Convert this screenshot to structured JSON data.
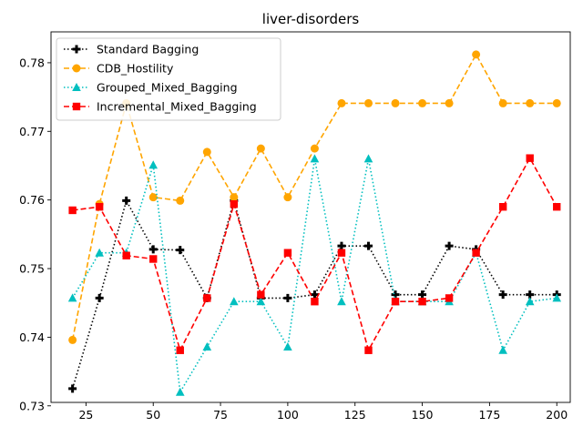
{
  "chart_data": {
    "type": "line",
    "title": "liver-disorders",
    "xlabel": "",
    "ylabel": "",
    "xlim": [
      12,
      205
    ],
    "ylim": [
      0.7305,
      0.7845
    ],
    "xticks": [
      25,
      50,
      75,
      100,
      125,
      150,
      175,
      200
    ],
    "yticks": [
      0.73,
      0.74,
      0.75,
      0.76,
      0.77,
      0.78
    ],
    "grid": false,
    "legend": "top-left",
    "x": [
      20,
      30,
      40,
      50,
      60,
      70,
      80,
      90,
      100,
      110,
      120,
      130,
      140,
      150,
      160,
      170,
      180,
      190,
      200
    ],
    "series": [
      {
        "name": "Standard Bagging",
        "color": "#000000",
        "line": "dotted",
        "marker": "plus",
        "values": [
          0.7325,
          0.7457,
          0.7599,
          0.7528,
          0.7527,
          0.7457,
          0.7599,
          0.7457,
          0.7457,
          0.7462,
          0.7533,
          0.7533,
          0.7462,
          0.7462,
          0.7533,
          0.7528,
          0.7462,
          0.7462,
          0.7462
        ]
      },
      {
        "name": "CDB_Hostility",
        "color": "#ffa500",
        "line": "dashed",
        "marker": "circle",
        "values": [
          0.7396,
          0.7594,
          0.7741,
          0.7604,
          0.7599,
          0.767,
          0.7604,
          0.7675,
          0.7604,
          0.7675,
          0.7741,
          0.7741,
          0.7741,
          0.7741,
          0.7741,
          0.7812,
          0.7741,
          0.7741,
          0.7741
        ]
      },
      {
        "name": "Grouped_Mixed_Bagging",
        "color": "#00bfbf",
        "line": "dotted",
        "marker": "triangle",
        "values": [
          0.7457,
          0.7523,
          0.7523,
          0.7651,
          0.732,
          0.7386,
          0.7452,
          0.7452,
          0.7386,
          0.766,
          0.7452,
          0.766,
          0.7452,
          0.7452,
          0.7452,
          0.7523,
          0.7381,
          0.7452,
          0.7457
        ]
      },
      {
        "name": "Incremental_Mixed_Bagging",
        "color": "#ff0000",
        "line": "dashed",
        "marker": "square",
        "values": [
          0.7585,
          0.759,
          0.7519,
          0.7514,
          0.7381,
          0.7457,
          0.7594,
          0.7462,
          0.7523,
          0.7452,
          0.7523,
          0.7381,
          0.7452,
          0.7452,
          0.7457,
          0.7523,
          0.759,
          0.7661,
          0.759
        ]
      }
    ]
  }
}
